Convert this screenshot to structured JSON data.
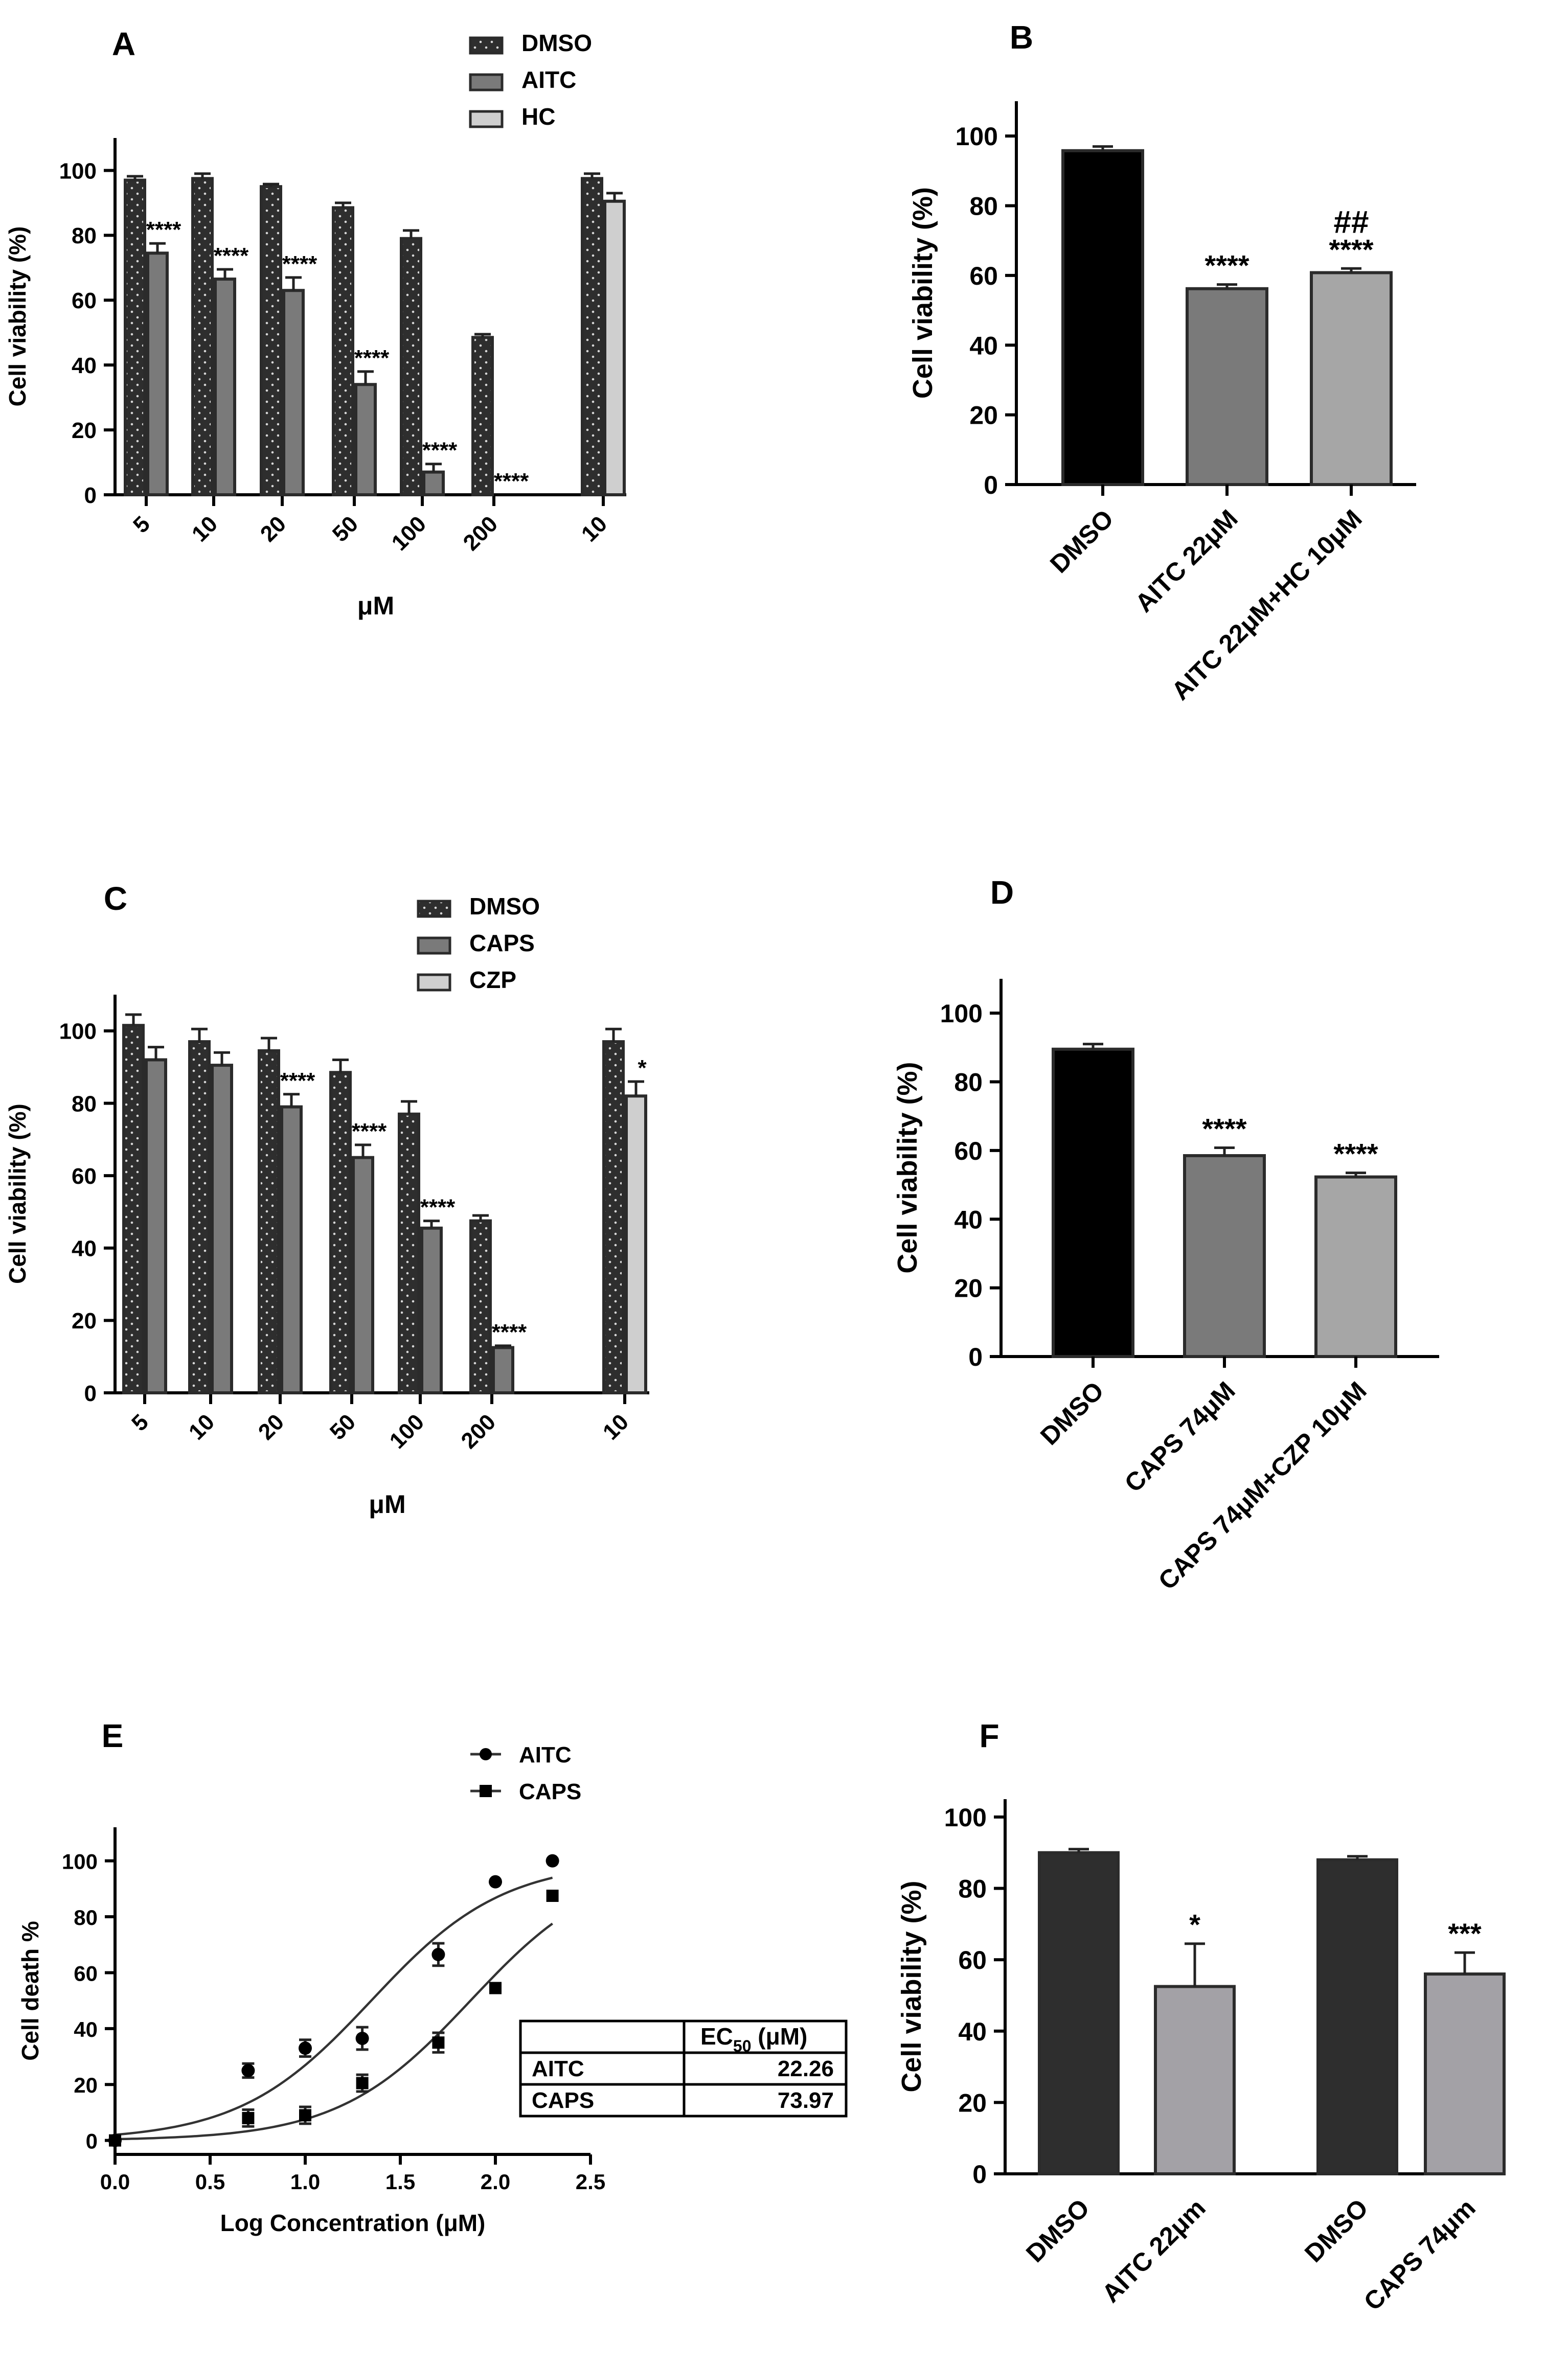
{
  "figure": {
    "panels": [
      "A",
      "B",
      "C",
      "D",
      "E",
      "F"
    ]
  },
  "colors": {
    "dmso_dark": "#2e2e2e",
    "black": "#000000",
    "agonist_gray": "#7a7a7a",
    "antagonist_light": "#cfcfcf",
    "combo_gray": "#a6a6a6",
    "f_second": "#a3a1a6"
  },
  "chart_data": [
    {
      "panel": "A",
      "type": "bar",
      "ylabel": "Cell viability (%)",
      "xlabel": "μM",
      "ylim": [
        0,
        110
      ],
      "yticks": [
        0,
        20,
        40,
        60,
        80,
        100
      ],
      "legend": [
        "DMSO",
        "AITC",
        "HC"
      ],
      "legend_position": "top-right",
      "categories": [
        "5",
        "10",
        "20",
        "50",
        "100",
        "200",
        "10"
      ],
      "series": [
        {
          "name": "DMSO",
          "values": [
            97,
            97.5,
            95,
            88.5,
            79,
            48.5,
            97.5
          ],
          "errors": [
            1.2,
            1.5,
            0.8,
            1.5,
            2.5,
            1,
            1.5
          ]
        },
        {
          "name": "AITC",
          "values": [
            74.5,
            66.5,
            63,
            34,
            7,
            0,
            null
          ],
          "errors": [
            3,
            3,
            4,
            4,
            2.5,
            0,
            null
          ]
        },
        {
          "name": "HC",
          "values": [
            null,
            null,
            null,
            null,
            null,
            null,
            90.5
          ],
          "errors": [
            null,
            null,
            null,
            null,
            null,
            null,
            2.5
          ]
        }
      ],
      "annotations": [
        "****",
        "****",
        "****",
        "****",
        "****",
        "****"
      ]
    },
    {
      "panel": "B",
      "type": "bar",
      "ylabel": "Cell viability (%)",
      "ylim": [
        0,
        110
      ],
      "yticks": [
        0,
        20,
        40,
        60,
        80,
        100
      ],
      "categories": [
        "DMSO",
        "AITC 22μM",
        "AITC 22μM+HC 10μM"
      ],
      "values": [
        95.8,
        56.2,
        60.8
      ],
      "errors": [
        1.2,
        1.2,
        1.2
      ],
      "annotations": [
        "",
        "****",
        "****"
      ],
      "extra_annotation": "##"
    },
    {
      "panel": "C",
      "type": "bar",
      "ylabel": "Cell viability (%)",
      "xlabel": "μM",
      "ylim": [
        0,
        110
      ],
      "yticks": [
        0,
        20,
        40,
        60,
        80,
        100
      ],
      "legend": [
        "DMSO",
        "CAPS",
        "CZP"
      ],
      "legend_position": "top-right",
      "categories": [
        "5",
        "10",
        "20",
        "50",
        "100",
        "200",
        "10"
      ],
      "series": [
        {
          "name": "DMSO",
          "values": [
            101.5,
            97,
            94.5,
            88.5,
            77,
            47.5,
            97
          ],
          "errors": [
            3,
            3.5,
            3.5,
            3.5,
            3.5,
            1.5,
            3.5
          ]
        },
        {
          "name": "CAPS",
          "values": [
            92,
            90.5,
            79,
            65,
            45.5,
            12.5,
            null
          ],
          "errors": [
            3.5,
            3.5,
            3.5,
            3.5,
            2,
            0.5,
            null
          ]
        },
        {
          "name": "CZP",
          "values": [
            null,
            null,
            null,
            null,
            null,
            null,
            82
          ],
          "errors": [
            null,
            null,
            null,
            null,
            null,
            null,
            4
          ]
        }
      ],
      "annotations": [
        "",
        "",
        "****",
        "****",
        "****",
        "****",
        "*"
      ]
    },
    {
      "panel": "D",
      "type": "bar",
      "ylabel": "Cell viability (%)",
      "ylim": [
        0,
        110
      ],
      "yticks": [
        0,
        20,
        40,
        60,
        80,
        100
      ],
      "categories": [
        "DMSO",
        "CAPS 74μM",
        "CAPS 74μM+CZP 10μM"
      ],
      "values": [
        89.5,
        58.5,
        52.3
      ],
      "errors": [
        1.5,
        2.3,
        1.2
      ],
      "annotations": [
        "",
        "****",
        "****"
      ]
    },
    {
      "panel": "E",
      "type": "scatter",
      "ylabel": "Cell death %",
      "xlabel": "Log Concentration (μM)",
      "xlim": [
        0,
        2.5
      ],
      "ylim": [
        -5,
        112
      ],
      "xticks": [
        "0.0",
        "0.5",
        "1.0",
        "1.5",
        "2.0",
        "2.5"
      ],
      "yticks": [
        0,
        20,
        40,
        60,
        80,
        100
      ],
      "legend": [
        "AITC",
        "CAPS"
      ],
      "series": [
        {
          "name": "AITC",
          "x": [
            0,
            0.7,
            1.0,
            1.3,
            1.7,
            2.0,
            2.3
          ],
          "y": [
            0,
            25,
            33,
            36.5,
            66.5,
            92.5,
            100
          ],
          "errors": [
            1.5,
            2.5,
            3,
            4,
            4,
            0,
            0
          ]
        },
        {
          "name": "CAPS",
          "x": [
            0,
            0.7,
            1.0,
            1.3,
            1.7,
            2.0,
            2.3
          ],
          "y": [
            0,
            8,
            9,
            20.5,
            35,
            54.5,
            87.5
          ],
          "errors": [
            1.5,
            3,
            3,
            3,
            3.5,
            0,
            0
          ]
        }
      ],
      "fit_ec50_log": [
        1.347,
        1.869
      ],
      "table": {
        "header": [
          "",
          "EC",
          "50",
          " (μM)"
        ],
        "rows": [
          [
            "AITC",
            "22.26"
          ],
          [
            "CAPS",
            "73.97"
          ]
        ]
      }
    },
    {
      "panel": "F",
      "type": "bar",
      "ylabel": "Cell viability (%)",
      "ylim": [
        0,
        105
      ],
      "yticks": [
        0,
        20,
        40,
        60,
        80,
        100
      ],
      "categories": [
        "DMSO",
        "AITC 22μm",
        "DMSO",
        "CAPS 74μm"
      ],
      "values": [
        90,
        52.5,
        88,
        56
      ],
      "errors": [
        1,
        12,
        1,
        6
      ],
      "annotations": [
        "",
        "*",
        "",
        "***"
      ]
    }
  ]
}
